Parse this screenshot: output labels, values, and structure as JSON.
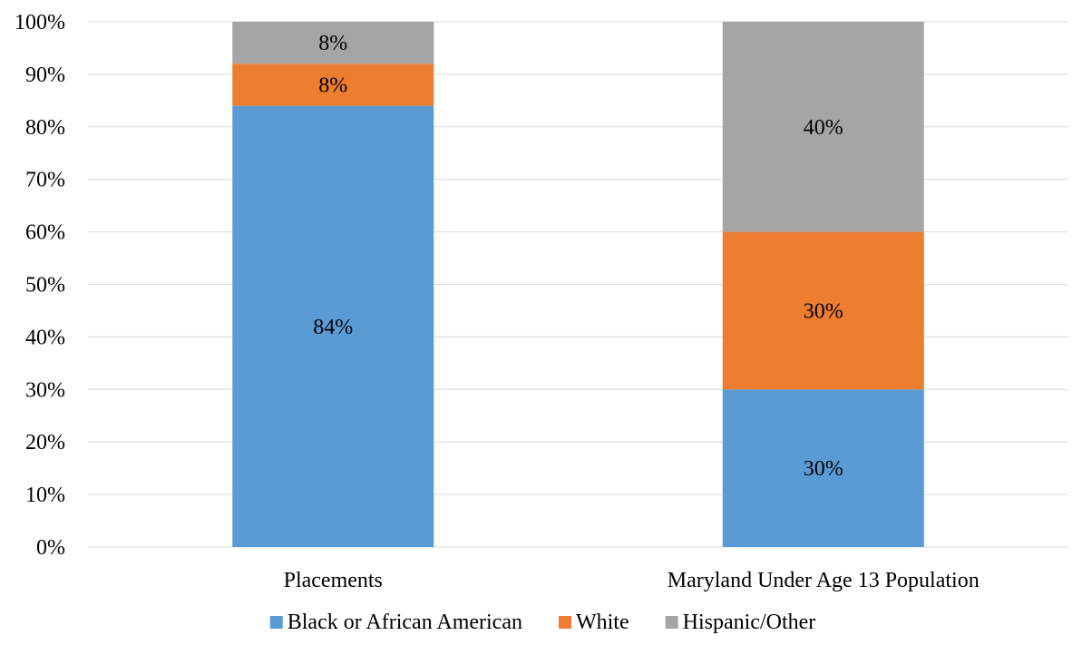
{
  "chart_data": {
    "type": "bar",
    "stacked": true,
    "percent_stacked": true,
    "categories": [
      "Placements",
      "Maryland Under Age 13 Population"
    ],
    "series": [
      {
        "name": "Black or African American",
        "color": "#5b9bd5",
        "values": [
          84,
          30
        ],
        "labels": [
          "84%",
          "30%"
        ]
      },
      {
        "name": "White",
        "color": "#ed7d31",
        "values": [
          8,
          30
        ],
        "labels": [
          "8%",
          "30%"
        ]
      },
      {
        "name": "Hispanic/Other",
        "color": "#a5a5a5",
        "values": [
          8,
          40
        ],
        "labels": [
          "8%",
          "40%"
        ]
      }
    ],
    "y_ticks": [
      "0%",
      "10%",
      "20%",
      "30%",
      "40%",
      "50%",
      "60%",
      "70%",
      "80%",
      "90%",
      "100%"
    ],
    "ylim": [
      0,
      100
    ],
    "title": "",
    "xlabel": "",
    "ylabel": "",
    "grid": true,
    "legend_position": "bottom"
  }
}
